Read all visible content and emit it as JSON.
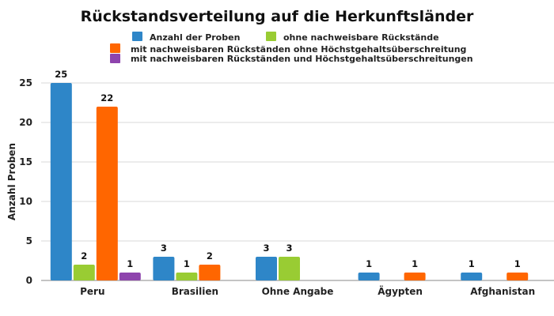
{
  "chart_data": {
    "type": "bar",
    "title": "Rückstandsverteilung auf die Herkunftsländer",
    "xlabel": "",
    "ylabel": "Anzahl Proben",
    "ylim": [
      0,
      25
    ],
    "yticks": [
      0,
      5,
      10,
      15,
      20,
      25
    ],
    "grid": true,
    "legend_position": "top",
    "categories": [
      "Peru",
      "Brasilien",
      "Ohne Angabe",
      "Ägypten",
      "Afghanistan"
    ],
    "series": [
      {
        "name": "Anzahl der Proben",
        "color": "#2e86c8",
        "values": [
          25,
          3,
          3,
          1,
          1
        ]
      },
      {
        "name": "ohne nachweisbare Rückstände",
        "color": "#99cc33",
        "values": [
          2,
          1,
          3,
          null,
          null
        ]
      },
      {
        "name": "mit nachweisbaren Rückständen ohne Höchstgehaltsüberschreitung",
        "color": "#ff6600",
        "values": [
          22,
          2,
          null,
          1,
          1
        ]
      },
      {
        "name": "mit nachweisbaren Rückständen und Höchstgehaltsüberschreitungen",
        "color": "#8e44ad",
        "values": [
          1,
          null,
          null,
          null,
          null
        ]
      }
    ]
  }
}
